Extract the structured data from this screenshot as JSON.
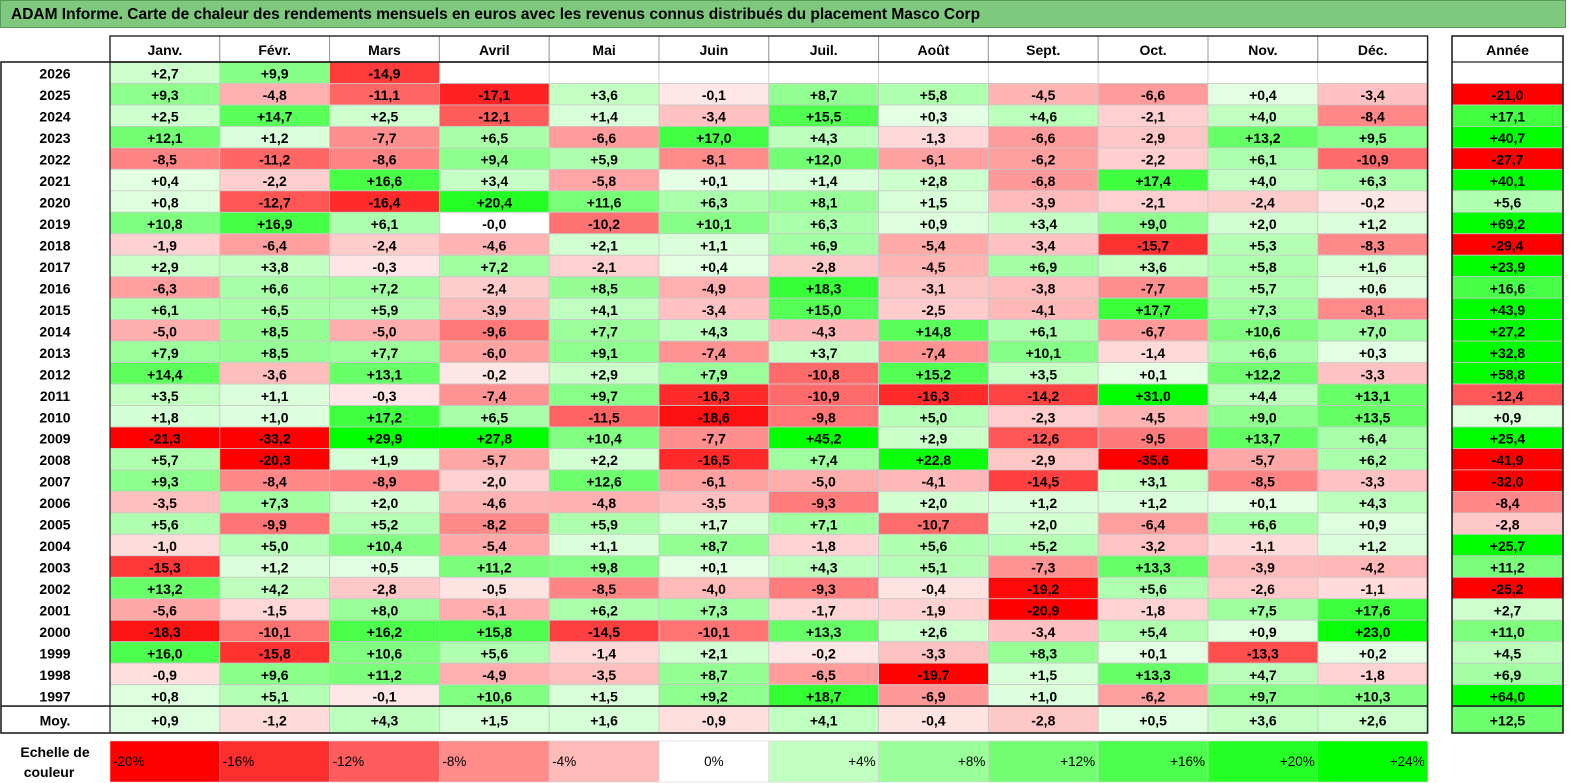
{
  "title": "ADAM Informe. Carte de chaleur des rendements mensuels en euros avec les revenus connus distribués du placement Masco Corp",
  "colors": {
    "positive_max": "#00ff00",
    "negative_max": "#ff0000",
    "neutral": "#ffffff",
    "title_bg": "#7fc97f"
  },
  "chart_data": {
    "type": "heatmap",
    "title": "ADAM Informe. Carte de chaleur des rendements mensuels en euros avec les revenus connus distribués du placement Masco Corp",
    "months": [
      "Janv.",
      "Févr.",
      "Mars",
      "Avril",
      "Mai",
      "Juin",
      "Juil.",
      "Août",
      "Sept.",
      "Oct.",
      "Nov.",
      "Déc."
    ],
    "year_header": "Année",
    "rows": [
      {
        "label": "2026",
        "values": [
          2.7,
          9.9,
          -14.9,
          null,
          null,
          null,
          null,
          null,
          null,
          null,
          null,
          null
        ],
        "year": null
      },
      {
        "label": "2025",
        "values": [
          9.3,
          -4.8,
          -11.1,
          -17.1,
          3.6,
          -0.1,
          8.7,
          5.8,
          -4.5,
          -6.6,
          0.4,
          -3.4
        ],
        "year": -21.0
      },
      {
        "label": "2024",
        "values": [
          2.5,
          14.7,
          2.5,
          -12.1,
          1.4,
          -3.4,
          15.5,
          0.3,
          4.6,
          -2.1,
          4.0,
          -8.4
        ],
        "year": 17.1
      },
      {
        "label": "2023",
        "values": [
          12.1,
          1.2,
          -7.7,
          6.5,
          -6.6,
          17.0,
          4.3,
          -1.3,
          -6.6,
          -2.9,
          13.2,
          9.5
        ],
        "year": 40.7
      },
      {
        "label": "2022",
        "values": [
          -8.5,
          -11.2,
          -8.6,
          9.4,
          5.9,
          -8.1,
          12.0,
          -6.1,
          -6.2,
          -2.2,
          6.1,
          -10.9
        ],
        "year": -27.7
      },
      {
        "label": "2021",
        "values": [
          0.4,
          -2.2,
          16.6,
          3.4,
          -5.8,
          0.1,
          1.4,
          2.8,
          -6.8,
          17.4,
          4.0,
          6.3
        ],
        "year": 40.1
      },
      {
        "label": "2020",
        "values": [
          0.8,
          -12.7,
          -16.4,
          20.4,
          11.6,
          6.3,
          8.1,
          1.5,
          -3.9,
          -2.1,
          -2.4,
          -0.2
        ],
        "year": 5.6
      },
      {
        "label": "2019",
        "values": [
          10.8,
          16.9,
          6.1,
          -0.0,
          -10.2,
          10.1,
          6.3,
          0.9,
          3.4,
          9.0,
          2.0,
          1.2
        ],
        "year": 69.2
      },
      {
        "label": "2018",
        "values": [
          -1.9,
          -6.4,
          -2.4,
          -4.6,
          2.1,
          1.1,
          6.9,
          -5.4,
          -3.4,
          -15.7,
          5.3,
          -8.3
        ],
        "year": -29.4
      },
      {
        "label": "2017",
        "values": [
          2.9,
          3.8,
          -0.3,
          7.2,
          -2.1,
          0.4,
          -2.8,
          -4.5,
          6.9,
          3.6,
          5.8,
          1.6
        ],
        "year": 23.9
      },
      {
        "label": "2016",
        "values": [
          -6.3,
          6.6,
          7.2,
          -2.4,
          8.5,
          -4.9,
          18.3,
          -3.1,
          -3.8,
          -7.7,
          5.7,
          0.6
        ],
        "year": 16.6
      },
      {
        "label": "2015",
        "values": [
          6.1,
          6.5,
          5.9,
          -3.9,
          4.1,
          -3.4,
          15.0,
          -2.5,
          -4.1,
          17.7,
          7.3,
          -8.1
        ],
        "year": 43.9
      },
      {
        "label": "2014",
        "values": [
          -5.0,
          8.5,
          -5.0,
          -9.6,
          7.7,
          4.3,
          -4.3,
          14.8,
          6.1,
          -6.7,
          10.6,
          7.0
        ],
        "year": 27.2
      },
      {
        "label": "2013",
        "values": [
          7.9,
          8.5,
          7.7,
          -6.0,
          9.1,
          -7.4,
          3.7,
          -7.4,
          10.1,
          -1.4,
          6.6,
          0.3
        ],
        "year": 32.8
      },
      {
        "label": "2012",
        "values": [
          14.4,
          -3.6,
          13.1,
          -0.2,
          2.9,
          7.9,
          -10.8,
          15.2,
          3.5,
          0.1,
          12.2,
          -3.3
        ],
        "year": 58.8
      },
      {
        "label": "2011",
        "values": [
          3.5,
          1.1,
          -0.3,
          -7.4,
          9.7,
          -16.3,
          -10.9,
          -16.3,
          -14.2,
          31.0,
          4.4,
          13.1
        ],
        "year": -12.4
      },
      {
        "label": "2010",
        "values": [
          1.8,
          1.0,
          17.2,
          6.5,
          -11.5,
          -18.6,
          -9.8,
          5.0,
          -2.3,
          -4.5,
          9.0,
          13.5
        ],
        "year": 0.9
      },
      {
        "label": "2009",
        "values": [
          -21.3,
          -33.2,
          29.9,
          27.8,
          10.4,
          -7.7,
          45.2,
          2.9,
          -12.6,
          -9.5,
          13.7,
          6.4
        ],
        "year": 25.4
      },
      {
        "label": "2008",
        "values": [
          5.7,
          -20.3,
          1.9,
          -5.7,
          2.2,
          -16.5,
          7.4,
          22.8,
          -2.9,
          -35.6,
          -5.7,
          6.2
        ],
        "year": -41.9
      },
      {
        "label": "2007",
        "values": [
          9.3,
          -8.4,
          -8.9,
          -2.0,
          12.6,
          -6.1,
          -5.0,
          -4.1,
          -14.5,
          3.1,
          -8.5,
          -3.3
        ],
        "year": -32.0
      },
      {
        "label": "2006",
        "values": [
          -3.5,
          7.3,
          2.0,
          -4.6,
          -4.8,
          -3.5,
          -9.3,
          2.0,
          1.2,
          1.2,
          0.1,
          4.3
        ],
        "year": -8.4
      },
      {
        "label": "2005",
        "values": [
          5.6,
          -9.9,
          5.2,
          -8.2,
          5.9,
          1.7,
          7.1,
          -10.7,
          2.0,
          -6.4,
          6.6,
          0.9
        ],
        "year": -2.8
      },
      {
        "label": "2004",
        "values": [
          -1.0,
          5.0,
          10.4,
          -5.4,
          1.1,
          8.7,
          -1.8,
          5.6,
          5.2,
          -3.2,
          -1.1,
          1.2
        ],
        "year": 25.7
      },
      {
        "label": "2003",
        "values": [
          -15.3,
          1.2,
          0.5,
          11.2,
          9.8,
          0.1,
          4.3,
          5.1,
          -7.3,
          13.3,
          -3.9,
          -4.2
        ],
        "year": 11.2
      },
      {
        "label": "2002",
        "values": [
          13.2,
          4.2,
          -2.8,
          -0.5,
          -8.5,
          -4.0,
          -9.3,
          -0.4,
          -19.2,
          5.6,
          -2.6,
          -1.1
        ],
        "year": -25.2
      },
      {
        "label": "2001",
        "values": [
          -5.6,
          -1.5,
          8.0,
          -5.1,
          6.2,
          7.3,
          -1.7,
          -1.9,
          -20.9,
          -1.8,
          7.5,
          17.6
        ],
        "year": 2.7
      },
      {
        "label": "2000",
        "values": [
          -18.3,
          -10.1,
          16.2,
          15.8,
          -14.5,
          -10.1,
          13.3,
          2.6,
          -3.4,
          5.4,
          0.9,
          23.0
        ],
        "year": 11.0
      },
      {
        "label": "1999",
        "values": [
          16.0,
          -15.8,
          10.6,
          5.6,
          -1.4,
          2.1,
          -0.2,
          -3.3,
          8.3,
          0.1,
          -13.3,
          0.2
        ],
        "year": 4.5
      },
      {
        "label": "1998",
        "values": [
          -0.9,
          9.6,
          11.2,
          -4.9,
          -3.5,
          8.7,
          -6.5,
          -19.7,
          1.5,
          13.3,
          4.7,
          -1.8
        ],
        "year": 6.9
      },
      {
        "label": "1997",
        "values": [
          0.8,
          5.1,
          -0.1,
          10.6,
          1.5,
          9.2,
          18.7,
          -6.9,
          1.0,
          -6.2,
          9.7,
          10.3
        ],
        "year": 64.0
      }
    ],
    "average": {
      "label": "Moy.",
      "values": [
        0.9,
        -1.2,
        4.3,
        1.5,
        1.6,
        -0.9,
        4.1,
        -0.4,
        -2.8,
        0.5,
        3.6,
        2.6
      ],
      "year": 12.5
    },
    "scale": {
      "label_line1": "Echelle de",
      "label_line2": "couleur",
      "steps": [
        {
          "label": "-20%",
          "value": -20
        },
        {
          "label": "-16%",
          "value": -16
        },
        {
          "label": "-12%",
          "value": -12
        },
        {
          "label": "-8%",
          "value": -8
        },
        {
          "label": "-4%",
          "value": -4
        },
        {
          "label": "0%",
          "value": 0
        },
        {
          "label": "+4%",
          "value": 4
        },
        {
          "label": "+8%",
          "value": 8
        },
        {
          "label": "+12%",
          "value": 12
        },
        {
          "label": "+16%",
          "value": 16
        },
        {
          "label": "+20%",
          "value": 20
        },
        {
          "label": "+24%",
          "value": 24
        }
      ]
    }
  }
}
